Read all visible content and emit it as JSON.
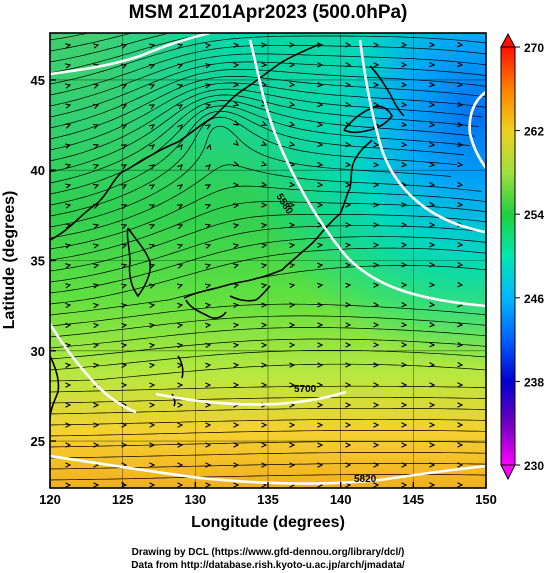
{
  "title": "MSM 21Z01Apr2023 (500.0hPa)",
  "x_axis": {
    "label": "Longitude (degrees)",
    "min": 120,
    "max": 150,
    "ticks": [
      "120",
      "125",
      "130",
      "135",
      "140",
      "145",
      "150"
    ]
  },
  "y_axis": {
    "label": "Latitude  (degrees)",
    "min": 22.4,
    "max": 47.6,
    "ticks": [
      "25",
      "30",
      "35",
      "40",
      "45"
    ]
  },
  "colorbar": {
    "min": 230,
    "max": 270,
    "ticks": [
      "230",
      "238",
      "246",
      "254",
      "262",
      "270"
    ]
  },
  "contour_labels": [
    "5580",
    "5700",
    "5820"
  ],
  "footer": {
    "line1": "Drawing by DCL (https://www.gfd-dennou.org/library/dcl/)",
    "line2": "Data from http://database.rish.kyoto-u.ac.jp/arch/jmadata/"
  }
}
